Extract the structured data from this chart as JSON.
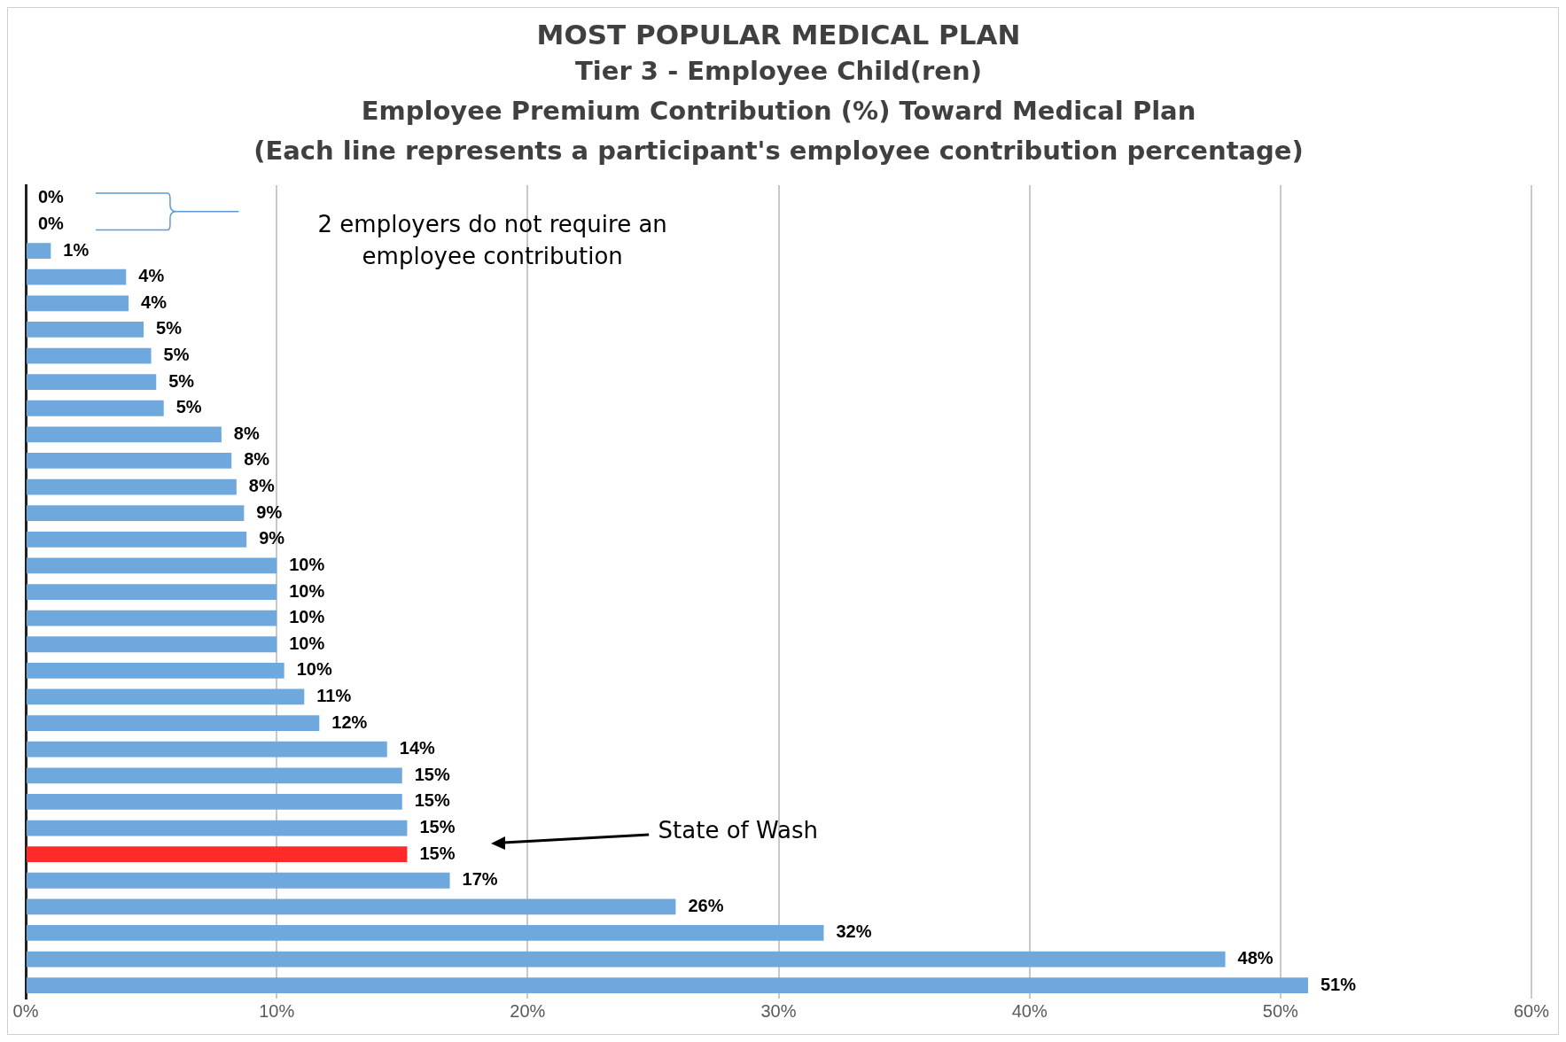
{
  "chart_data": {
    "type": "bar",
    "orientation": "horizontal",
    "title": "MOST POPULAR MEDICAL PLAN",
    "subtitle": "Tier 3 - Employee Child(ren)\nEmployee Premium Contribution (%) Toward Medical Plan\n(Each line represents a participant's employee contribution percentage)",
    "categories": [
      null,
      null,
      null,
      null,
      null,
      null,
      null,
      null,
      null,
      null,
      null,
      null,
      null,
      null,
      null,
      null,
      null,
      null,
      null,
      null,
      null,
      null,
      null,
      null,
      null,
      null,
      null,
      null,
      null,
      null,
      null
    ],
    "values": [
      0,
      0,
      1.0,
      4.0,
      4.1,
      4.7,
      5.0,
      5.2,
      5.5,
      7.8,
      8.2,
      8.4,
      8.7,
      8.8,
      10.0,
      10.0,
      10.0,
      10.0,
      10.3,
      11.1,
      11.7,
      14.4,
      15.0,
      15.0,
      15.2,
      15.2,
      16.9,
      25.9,
      31.8,
      47.8,
      51.1
    ],
    "value_labels": [
      "0%",
      "0%",
      "1%",
      "4%",
      "4%",
      "5%",
      "5%",
      "5%",
      "5%",
      "8%",
      "8%",
      "8%",
      "9%",
      "9%",
      "10%",
      "10%",
      "10%",
      "10%",
      "10%",
      "11%",
      "12%",
      "14%",
      "15%",
      "15%",
      "15%",
      "15%",
      "17%",
      "26%",
      "32%",
      "48%",
      "51%"
    ],
    "colors": [
      "#6fa8dc",
      "#6fa8dc",
      "#6fa8dc",
      "#6fa8dc",
      "#6fa8dc",
      "#6fa8dc",
      "#6fa8dc",
      "#6fa8dc",
      "#6fa8dc",
      "#6fa8dc",
      "#6fa8dc",
      "#6fa8dc",
      "#6fa8dc",
      "#6fa8dc",
      "#6fa8dc",
      "#6fa8dc",
      "#6fa8dc",
      "#6fa8dc",
      "#6fa8dc",
      "#6fa8dc",
      "#6fa8dc",
      "#6fa8dc",
      "#6fa8dc",
      "#6fa8dc",
      "#6fa8dc",
      "#ff2a2a",
      "#6fa8dc",
      "#6fa8dc",
      "#6fa8dc",
      "#6fa8dc",
      "#6fa8dc"
    ],
    "xlim": [
      0,
      60
    ],
    "xticks": [
      {
        "value": 0,
        "label": "0%"
      },
      {
        "value": 10,
        "label": "10%"
      },
      {
        "value": 20,
        "label": "20%"
      },
      {
        "value": 30,
        "label": "30%"
      },
      {
        "value": 40,
        "label": "40%"
      },
      {
        "value": 50,
        "label": "50%"
      },
      {
        "value": 60,
        "label": "60%"
      }
    ],
    "grid": "x",
    "legend": false,
    "annotations": [
      "2 employers do not require an employee contribution",
      "State of Wash"
    ]
  }
}
